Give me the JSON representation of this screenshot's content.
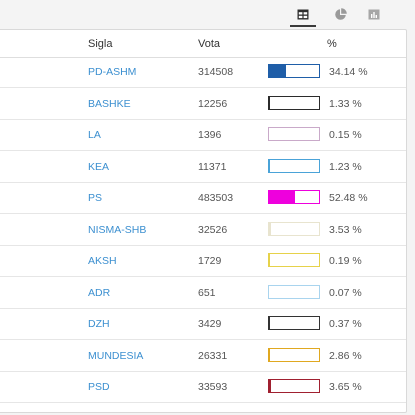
{
  "toolbar": {
    "icons": [
      "table-icon",
      "pie-chart-icon",
      "bar-chart-icon"
    ],
    "active": "table-icon"
  },
  "table": {
    "headers": {
      "party": "Sigla",
      "votes": "Vota",
      "percent": "%"
    },
    "rows": [
      {
        "party": "PD-ASHM",
        "votes": "314508",
        "pct": "34.14 %",
        "share": 0.3414,
        "color": "#1f5ea8"
      },
      {
        "party": "BASHKE",
        "votes": "12256",
        "pct": "1.33 %",
        "share": 0.0133,
        "color": "#2b2b2b"
      },
      {
        "party": "LA",
        "votes": "1396",
        "pct": "0.15 %",
        "share": 0.0015,
        "color": "#c9a9c9"
      },
      {
        "party": "KEA",
        "votes": "11371",
        "pct": "1.23 %",
        "share": 0.0123,
        "color": "#4aa3d8"
      },
      {
        "party": "PS",
        "votes": "483503",
        "pct": "52.48 %",
        "share": 0.5248,
        "color": "#ee00dd"
      },
      {
        "party": "NISMA-SHB",
        "votes": "32526",
        "pct": "3.53 %",
        "share": 0.0353,
        "color": "#e8e4cf"
      },
      {
        "party": "AKSH",
        "votes": "1729",
        "pct": "0.19 %",
        "share": 0.0019,
        "color": "#e6d24a"
      },
      {
        "party": "ADR",
        "votes": "651",
        "pct": "0.07 %",
        "share": 0.0007,
        "color": "#a9d4ee"
      },
      {
        "party": "DZH",
        "votes": "3429",
        "pct": "0.37 %",
        "share": 0.0037,
        "color": "#333333"
      },
      {
        "party": "MUNDESIA",
        "votes": "26331",
        "pct": "2.86 %",
        "share": 0.0286,
        "color": "#e0a820"
      },
      {
        "party": "PSD",
        "votes": "33593",
        "pct": "3.65 %",
        "share": 0.0365,
        "color": "#a02030"
      }
    ]
  }
}
